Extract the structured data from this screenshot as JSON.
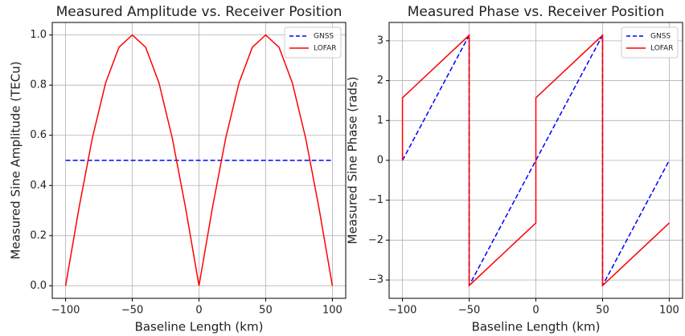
{
  "chart_data": [
    {
      "type": "line",
      "title": "Measured Amplitude vs. Receiver Position",
      "xlabel": "Baseline Length (km)",
      "ylabel": "Measured Sine Amplitude (TECu)",
      "xlim": [
        -110,
        110
      ],
      "ylim": [
        -0.05,
        1.05
      ],
      "xticks": [
        {
          "value": -100,
          "label": "−100"
        },
        {
          "value": -50,
          "label": "−50"
        },
        0,
        50,
        100
      ],
      "yticks": [
        {
          "value": 0,
          "label": "0.0"
        },
        0.2,
        0.4,
        0.6,
        0.8,
        {
          "value": 1,
          "label": "1.0"
        }
      ],
      "grid": true,
      "legend": "upper right",
      "series": [
        {
          "name": "GNSS",
          "color": "#0000ff",
          "linestyle": "--",
          "x": [
            -100,
            100
          ],
          "values": [
            0.5,
            0.5
          ]
        },
        {
          "name": "LOFAR",
          "color": "#ff0000",
          "linestyle": "-",
          "x": [
            -100,
            -90,
            -80,
            -70,
            -60,
            -50,
            -40,
            -30,
            -20,
            -10,
            0,
            10,
            20,
            30,
            40,
            50,
            60,
            70,
            80,
            90,
            100
          ],
          "values": [
            0,
            0.309,
            0.588,
            0.809,
            0.951,
            1,
            0.951,
            0.809,
            0.588,
            0.309,
            0,
            0.309,
            0.588,
            0.809,
            0.951,
            1,
            0.951,
            0.809,
            0.588,
            0.309,
            0
          ]
        }
      ]
    },
    {
      "type": "line",
      "title": "Measured Phase vs. Receiver Position",
      "xlabel": "Baseline Length (km)",
      "ylabel": "Measured Sine Phase (rads)",
      "xlim": [
        -110,
        110
      ],
      "ylim": [
        -3.46,
        3.46
      ],
      "xticks": [
        {
          "value": -100,
          "label": "−100"
        },
        {
          "value": -50,
          "label": "−50"
        },
        0,
        50,
        100
      ],
      "yticks": [
        {
          "value": -3,
          "label": "−3"
        },
        {
          "value": -2,
          "label": "−2"
        },
        {
          "value": -1,
          "label": "−1"
        },
        0,
        1,
        2,
        3
      ],
      "grid": true,
      "legend": "upper right",
      "series": [
        {
          "name": "GNSS",
          "color": "#0000ff",
          "linestyle": "--",
          "x": [
            -100,
            -50,
            -50,
            50,
            50,
            100
          ],
          "values": [
            0,
            3.14,
            -3.14,
            3.14,
            -3.14,
            0
          ]
        },
        {
          "name": "LOFAR",
          "color": "#ff0000",
          "linestyle": "-",
          "x": [
            -100,
            -100,
            -50,
            -50,
            0,
            0,
            50,
            50,
            100
          ],
          "values": [
            0,
            1.57,
            3.14,
            -3.14,
            -1.57,
            1.57,
            3.14,
            -3.14,
            -1.57
          ]
        }
      ]
    }
  ]
}
